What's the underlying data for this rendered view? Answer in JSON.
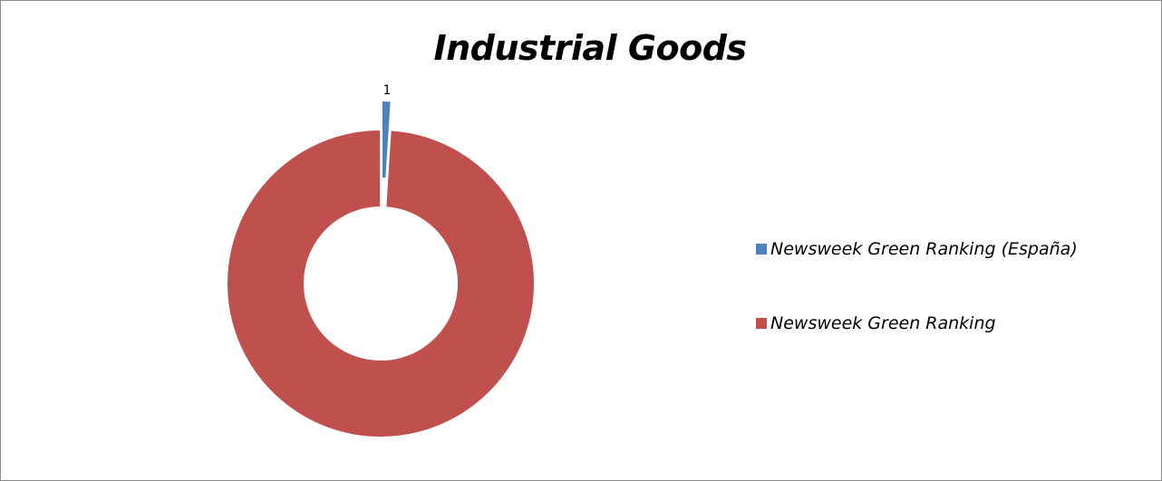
{
  "chart_data": {
    "type": "pie",
    "variant": "donut",
    "title": "Industrial Goods",
    "series": [
      {
        "name": "Newsweek Green Ranking (España)",
        "value": 1,
        "color": "#4f81bd",
        "data_label": "1",
        "exploded": true
      },
      {
        "name": "Newsweek Green Ranking",
        "value": 99,
        "color": "#c0504d",
        "data_label": ""
      }
    ],
    "legend_position": "right"
  }
}
